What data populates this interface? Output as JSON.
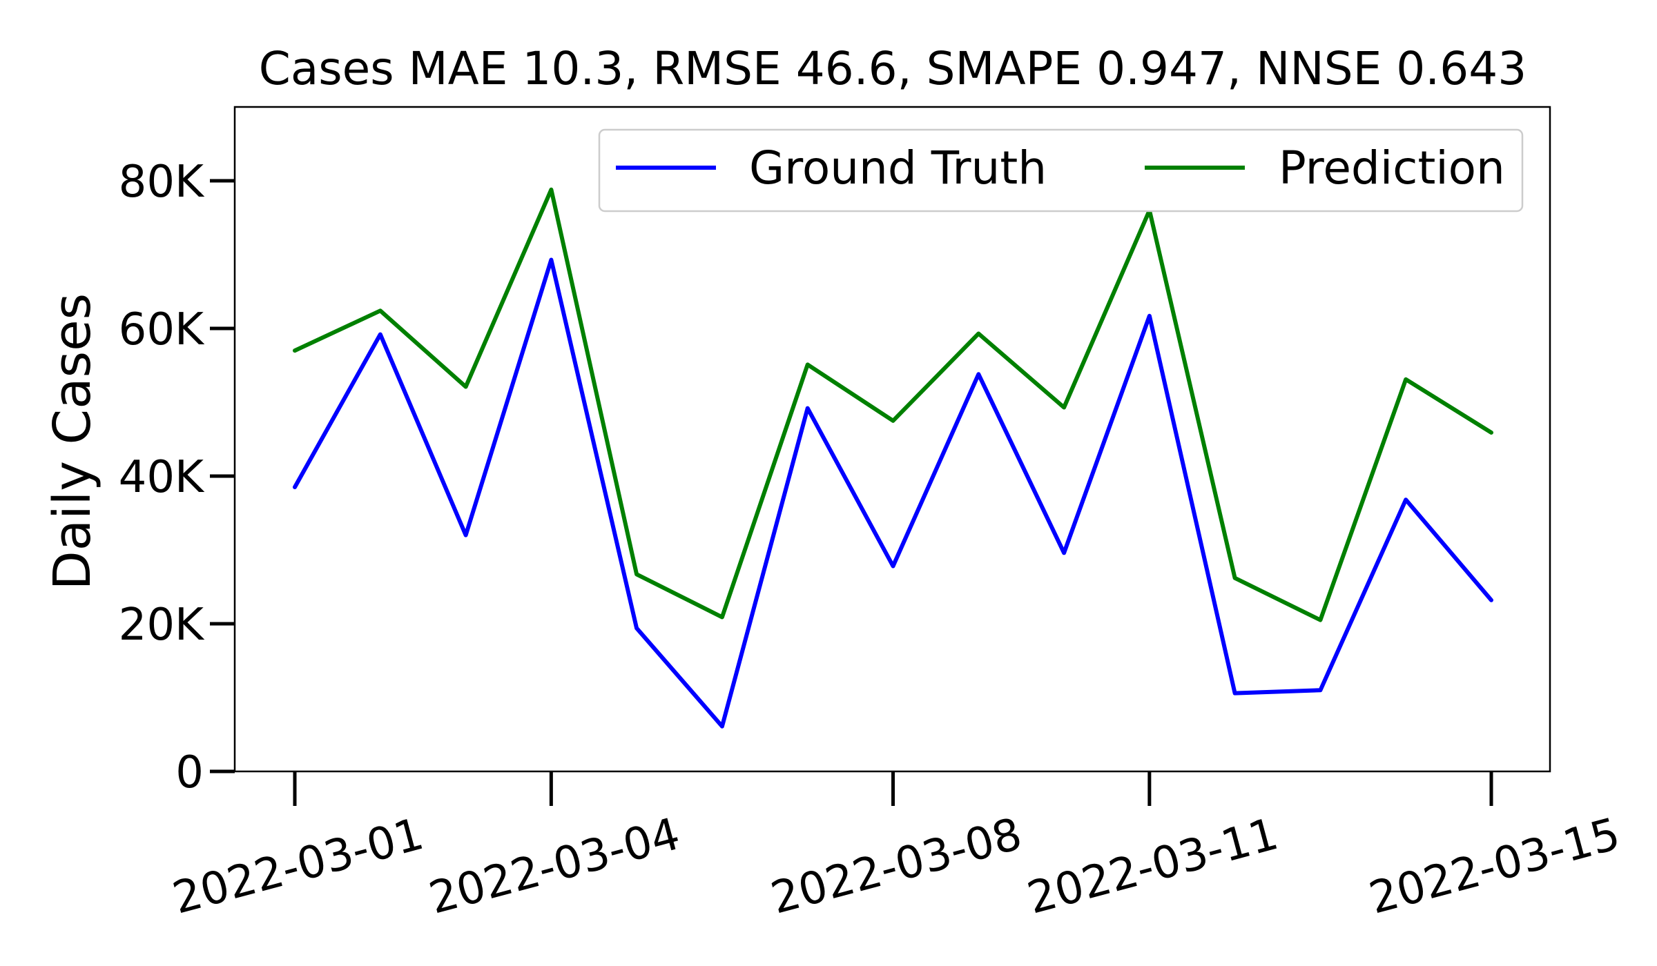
{
  "chart_data": {
    "type": "line",
    "title": "Cases MAE 10.3, RMSE 46.6, SMAPE 0.947, NNSE 0.643",
    "xlabel": "",
    "ylabel": "Daily Cases",
    "ylim": [
      0,
      90000
    ],
    "y_ticks": [
      {
        "value": 0,
        "label": "0"
      },
      {
        "value": 20000,
        "label": "20K"
      },
      {
        "value": 40000,
        "label": "40K"
      },
      {
        "value": 60000,
        "label": "60K"
      },
      {
        "value": 80000,
        "label": "80K"
      }
    ],
    "x_ticks": [
      "2022-03-01",
      "2022-03-04",
      "2022-03-08",
      "2022-03-11",
      "2022-03-15"
    ],
    "x": [
      "2022-03-01",
      "2022-03-02",
      "2022-03-03",
      "2022-03-04",
      "2022-03-05",
      "2022-03-06",
      "2022-03-07",
      "2022-03-08",
      "2022-03-09",
      "2022-03-10",
      "2022-03-11",
      "2022-03-12",
      "2022-03-13",
      "2022-03-14",
      "2022-03-15"
    ],
    "series": [
      {
        "name": "Ground Truth",
        "color": "#0000ff",
        "values": [
          38500,
          59200,
          32000,
          69300,
          19400,
          6100,
          49200,
          27800,
          53800,
          29600,
          61700,
          10600,
          11000,
          36800,
          23200
        ]
      },
      {
        "name": "Prediction",
        "color": "#008000",
        "values": [
          57000,
          62400,
          52100,
          78800,
          26700,
          20900,
          55100,
          47500,
          59300,
          49300,
          76000,
          26200,
          20500,
          53100,
          45900
        ]
      }
    ],
    "legend_position": "top-right",
    "grid": false
  }
}
